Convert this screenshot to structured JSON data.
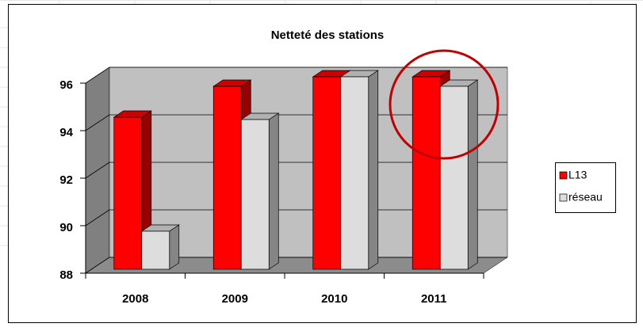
{
  "chart_data": {
    "type": "bar3d",
    "title": "Netteté des stations",
    "categories": [
      "2008",
      "2009",
      "2010",
      "2011"
    ],
    "series": [
      {
        "name": "L13",
        "color": "#ff0000",
        "values": [
          94.4,
          95.7,
          96.1,
          96.1
        ]
      },
      {
        "name": "réseau",
        "color": "#dddddd",
        "values": [
          89.6,
          94.3,
          96.1,
          95.7
        ]
      }
    ],
    "ylim": [
      88,
      96
    ],
    "yticks": [
      88,
      90,
      92,
      94,
      96
    ],
    "grid": true,
    "legend": "right"
  }
}
